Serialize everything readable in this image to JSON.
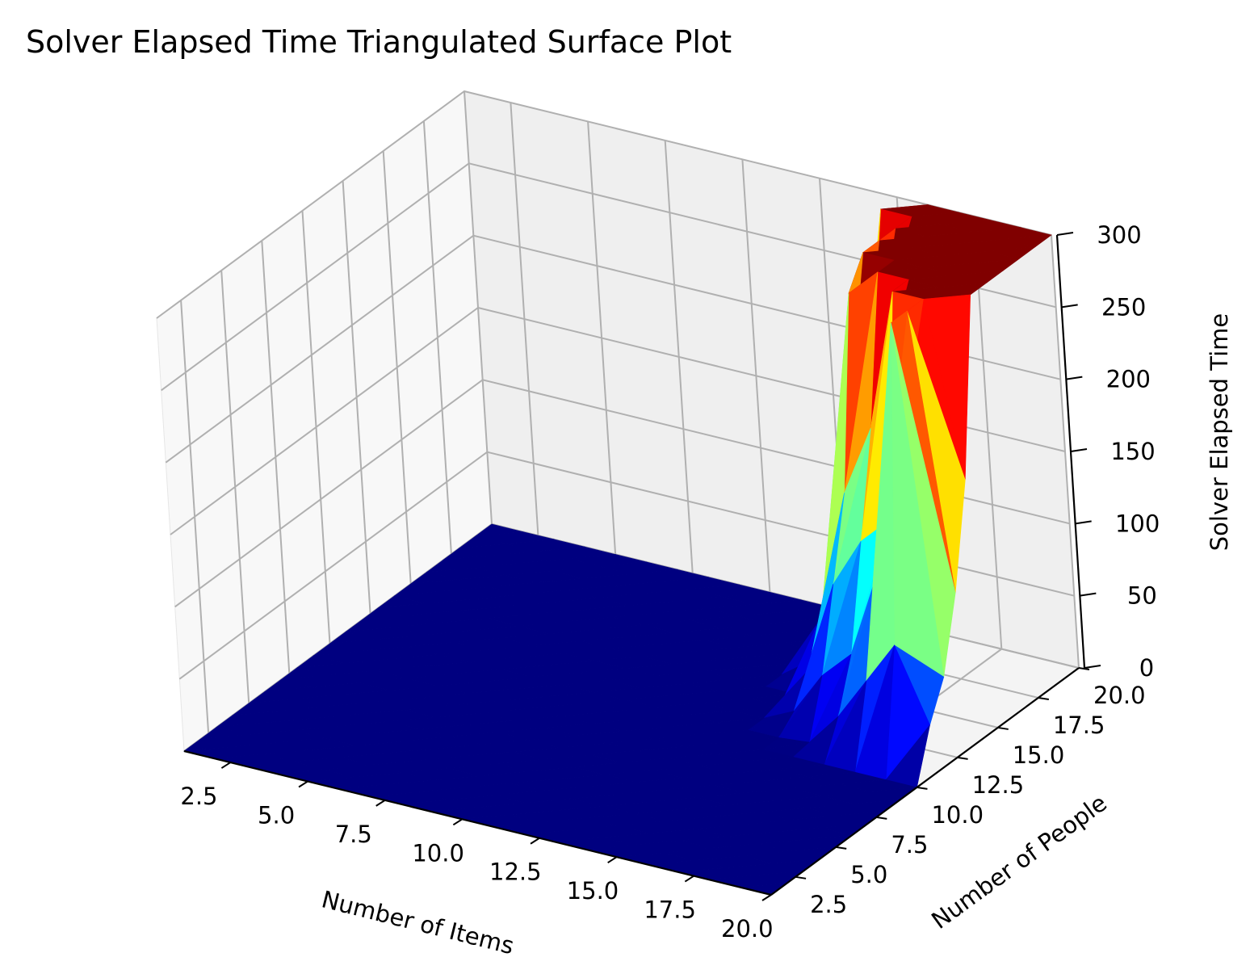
{
  "chart_data": {
    "type": "surface",
    "title": "Solver Elapsed Time Triangulated Surface Plot",
    "xlabel": "Number of Items",
    "ylabel": "Number of People",
    "zlabel": "Solver Elapsed Time",
    "xlim": [
      1,
      20
    ],
    "ylim": [
      1,
      20
    ],
    "zlim": [
      0,
      300
    ],
    "xticks": [
      "2.5",
      "5.0",
      "7.5",
      "10.0",
      "12.5",
      "15.0",
      "17.5",
      "20.0"
    ],
    "yticks": [
      "2.5",
      "5.0",
      "7.5",
      "10.0",
      "12.5",
      "15.0",
      "17.5",
      "20.0"
    ],
    "zticks": [
      "0",
      "50",
      "100",
      "150",
      "200",
      "250",
      "300"
    ],
    "colormap": "jet",
    "grid": true,
    "x": [
      1,
      2,
      3,
      4,
      5,
      6,
      7,
      8,
      9,
      10,
      11,
      12,
      13,
      14,
      15,
      16,
      17,
      18,
      19,
      20
    ],
    "y": [
      1,
      2,
      3,
      4,
      5,
      6,
      7,
      8,
      9,
      10,
      11,
      12,
      13,
      14,
      15,
      16,
      17,
      18,
      19,
      20
    ],
    "z_rows_by_people": [
      [
        0,
        0,
        0,
        0,
        0,
        0,
        0,
        0,
        0,
        0,
        0,
        0,
        0,
        0,
        0,
        0,
        0,
        0,
        0,
        0
      ],
      [
        0,
        0,
        0,
        0,
        0,
        0,
        0,
        0,
        0,
        0,
        0,
        0,
        0,
        0,
        0,
        0,
        0,
        0,
        0,
        0
      ],
      [
        0,
        0,
        0,
        0,
        0,
        0,
        0,
        0,
        0,
        0,
        0,
        0,
        0,
        0,
        0,
        0,
        0,
        0,
        0,
        0
      ],
      [
        0,
        0,
        0,
        0,
        0,
        0,
        0,
        0,
        0,
        0,
        0,
        0,
        0,
        0,
        0,
        0,
        0,
        0,
        0,
        0
      ],
      [
        0,
        0,
        0,
        0,
        0,
        0,
        0,
        0,
        0,
        0,
        0,
        0,
        0,
        0,
        0,
        0,
        0,
        0,
        0,
        0
      ],
      [
        0,
        0,
        0,
        0,
        0,
        0,
        0,
        0,
        0,
        0,
        0,
        0,
        0,
        0,
        0,
        0,
        0,
        0,
        0,
        0
      ],
      [
        0,
        0,
        0,
        0,
        0,
        0,
        0,
        0,
        0,
        0,
        0,
        0,
        0,
        0,
        0,
        0,
        0,
        0,
        0,
        0
      ],
      [
        0,
        0,
        0,
        0,
        0,
        0,
        0,
        0,
        0,
        0,
        0,
        0,
        0,
        0,
        0,
        0,
        0,
        0,
        0,
        0
      ],
      [
        0,
        0,
        0,
        0,
        0,
        0,
        0,
        0,
        0,
        0,
        0,
        0,
        0,
        0,
        0,
        0,
        0,
        0,
        0,
        0
      ],
      [
        0,
        0,
        0,
        0,
        0,
        0,
        0,
        0,
        0,
        0,
        0,
        0,
        0,
        0,
        0,
        0,
        0,
        0,
        0,
        0
      ],
      [
        0,
        0,
        0,
        0,
        0,
        0,
        0,
        0,
        0,
        0,
        0,
        0,
        0,
        0,
        0,
        2,
        25,
        55,
        85,
        35
      ],
      [
        0,
        0,
        0,
        0,
        0,
        0,
        0,
        0,
        0,
        0,
        0,
        0,
        0,
        0,
        10,
        40,
        60,
        120,
        300,
        60
      ],
      [
        0,
        0,
        0,
        0,
        0,
        0,
        0,
        0,
        0,
        0,
        0,
        0,
        0,
        0,
        30,
        95,
        130,
        150,
        300,
        110
      ],
      [
        0,
        0,
        0,
        0,
        0,
        0,
        0,
        0,
        0,
        0,
        0,
        0,
        0,
        0,
        60,
        150,
        200,
        300,
        300,
        180
      ],
      [
        0,
        0,
        0,
        0,
        0,
        0,
        0,
        0,
        0,
        0,
        0,
        0,
        0,
        15,
        80,
        280,
        300,
        300,
        300,
        300
      ],
      [
        0,
        0,
        0,
        0,
        0,
        0,
        0,
        0,
        0,
        0,
        0,
        0,
        0,
        40,
        110,
        300,
        300,
        300,
        300,
        300
      ],
      [
        0,
        0,
        0,
        0,
        0,
        0,
        0,
        0,
        0,
        0,
        0,
        0,
        0,
        50,
        150,
        300,
        300,
        300,
        300,
        300
      ],
      [
        0,
        0,
        0,
        0,
        0,
        0,
        0,
        0,
        0,
        0,
        0,
        0,
        0,
        90,
        210,
        300,
        300,
        300,
        300,
        300
      ],
      [
        0,
        0,
        0,
        0,
        0,
        0,
        0,
        0,
        0,
        0,
        0,
        0,
        0,
        120,
        300,
        300,
        300,
        300,
        300,
        300
      ],
      [
        0,
        0,
        0,
        0,
        0,
        0,
        0,
        0,
        0,
        0,
        0,
        0,
        0,
        200,
        260,
        300,
        300,
        300,
        300,
        300
      ]
    ]
  }
}
